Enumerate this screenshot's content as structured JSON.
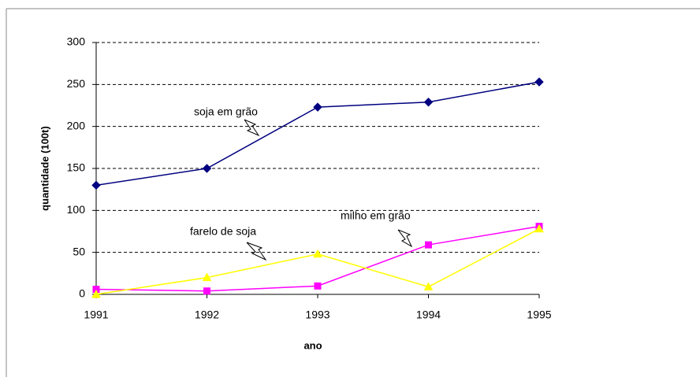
{
  "chart_data": {
    "type": "line",
    "x": [
      1991,
      1992,
      1993,
      1994,
      1995
    ],
    "xlim": [
      1991,
      1995
    ],
    "xticks": [
      1991,
      1992,
      1993,
      1994,
      1995
    ],
    "ylim": [
      0,
      300
    ],
    "yticks": [
      0,
      50,
      100,
      150,
      200,
      250,
      300
    ],
    "grid": true,
    "x_label": "ano",
    "y_label": "quantidade (100t)",
    "series": [
      {
        "name": "soja em grão",
        "color": "#000080",
        "marker": "diamond",
        "values": [
          130,
          150,
          223,
          229,
          253
        ]
      },
      {
        "name": "milho em grão",
        "color": "#ff00ff",
        "marker": "square",
        "values": [
          6,
          4,
          10,
          59,
          81
        ]
      },
      {
        "name": "farelo de soja",
        "color": "#ffff00",
        "marker": "triangle",
        "values": [
          0,
          20,
          48,
          9,
          78
        ]
      }
    ]
  }
}
